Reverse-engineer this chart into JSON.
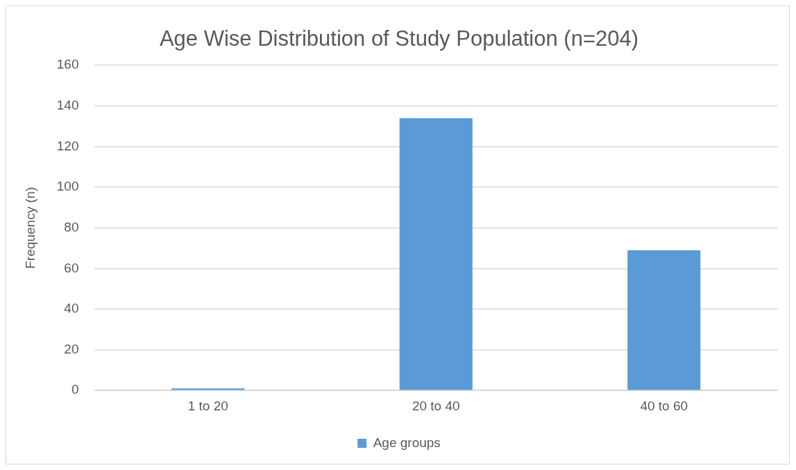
{
  "chart_data": {
    "type": "bar",
    "title": "Age Wise Distribution of Study Population (n=204)",
    "ylabel": "Frequency (n)",
    "categories": [
      "1 to 20",
      "20 to 40",
      "40 to 60"
    ],
    "series": [
      {
        "name": "Age groups",
        "color": "#5b9bd5",
        "values": [
          1,
          134,
          69
        ]
      }
    ],
    "ylim": [
      0,
      160
    ],
    "yticks": [
      0,
      20,
      40,
      60,
      80,
      100,
      120,
      140,
      160
    ],
    "grid": "y",
    "legend": "bottom"
  }
}
